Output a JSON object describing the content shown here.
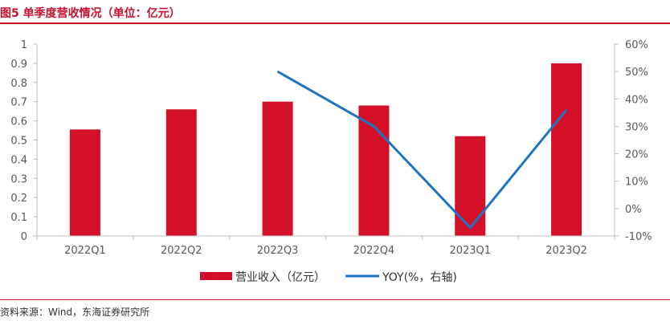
{
  "header": {
    "title": "图5 单季度营收情况（单位：亿元）"
  },
  "footer": {
    "source": "资料来源：Wind，东海证券研究所"
  },
  "colors": {
    "accent": "#c8102e",
    "bar": "#d40f28",
    "line": "#1f74c2",
    "axis": "#bfbfbf"
  },
  "chart_data": {
    "type": "bar",
    "categories": [
      "2022Q1",
      "2022Q2",
      "2022Q3",
      "2022Q4",
      "2023Q1",
      "2023Q2"
    ],
    "series": [
      {
        "name": "营业收入（亿元）",
        "type": "bar",
        "axis": "left",
        "values": [
          0.555,
          0.66,
          0.7,
          0.68,
          0.52,
          0.9
        ]
      },
      {
        "name": "YOY(%，右轴)",
        "type": "line",
        "axis": "right",
        "values": [
          null,
          null,
          50,
          30,
          -7,
          36
        ]
      }
    ],
    "y_left": {
      "ylim": [
        0,
        1
      ],
      "ticks": [
        "0",
        "0.1",
        "0.2",
        "0.3",
        "0.4",
        "0.5",
        "0.6",
        "0.7",
        "0.8",
        "0.9",
        "1"
      ]
    },
    "y_right": {
      "ylim": [
        -10,
        60
      ],
      "ticks": [
        "-10%",
        "0%",
        "10%",
        "20%",
        "30%",
        "40%",
        "50%",
        "60%"
      ]
    },
    "legend": "bottom-center",
    "grid": false
  }
}
